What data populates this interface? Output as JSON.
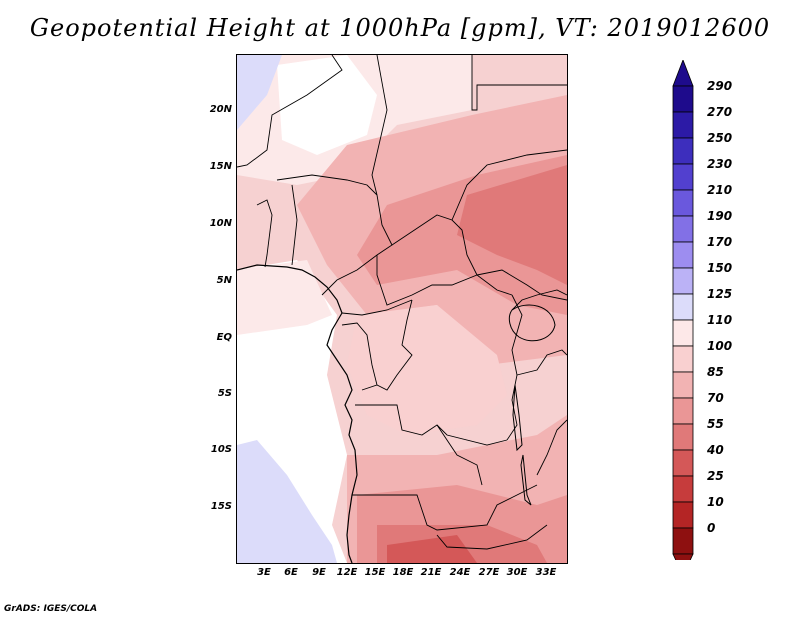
{
  "title": "Geopotential Height at 1000hPa [gpm], VT: 2019012600",
  "footer": "GrADS: IGES/COLA",
  "lat_labels": [
    "20N",
    "15N",
    "10N",
    "5N",
    "EQ",
    "5S",
    "10S",
    "15S"
  ],
  "lon_labels": [
    "3E",
    "6E",
    "9E",
    "12E",
    "15E",
    "18E",
    "21E",
    "24E",
    "27E",
    "30E",
    "33E"
  ],
  "colorbar": {
    "levels": [
      "290",
      "270",
      "250",
      "230",
      "210",
      "190",
      "170",
      "150",
      "125",
      "110",
      "100",
      "85",
      "70",
      "55",
      "40",
      "25",
      "10",
      "0"
    ],
    "colors": [
      "#1e0b8c",
      "#2c1aa6",
      "#3d2ebd",
      "#5240cf",
      "#6a58dd",
      "#8270e6",
      "#9d8df0",
      "#bbb2f6",
      "#dcdcfa",
      "#fde8e8",
      "#f9d0d0",
      "#f2b3b3",
      "#ea9696",
      "#e07979",
      "#d45858",
      "#c63c3c",
      "#b42525",
      "#8e1010"
    ]
  }
}
